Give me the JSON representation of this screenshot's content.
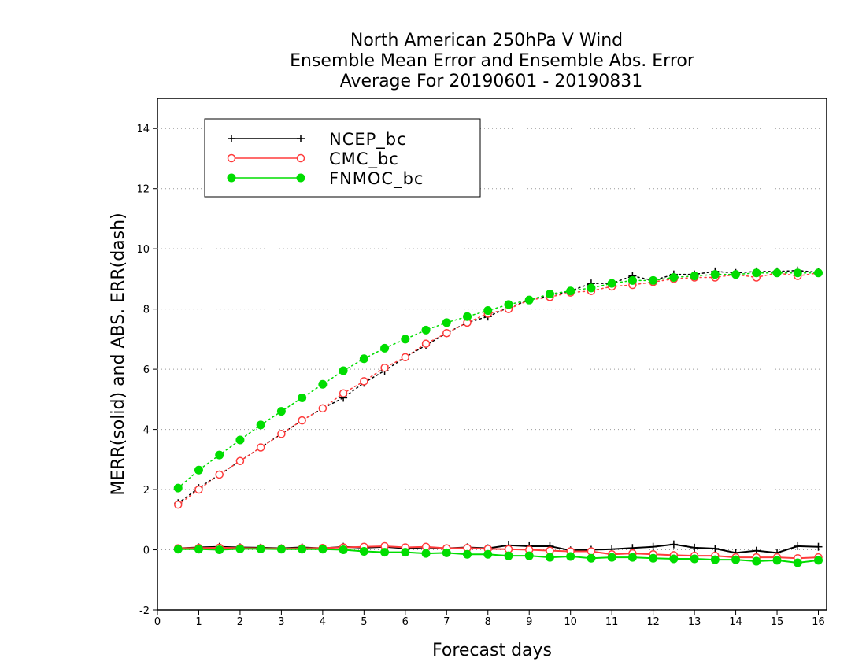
{
  "chart_data": {
    "type": "line",
    "title": [
      "North American 250hPa V Wind",
      "Ensemble Mean Error and Ensemble Abs. Error",
      "Average For 20190601 - 20190831"
    ],
    "xlabel": "Forecast days",
    "ylabel": "MERR(solid) and ABS. ERR(dash)",
    "xlim": [
      0,
      16.2
    ],
    "ylim": [
      -2,
      15
    ],
    "xticks": [
      0,
      1,
      2,
      3,
      4,
      5,
      6,
      7,
      8,
      9,
      10,
      11,
      12,
      13,
      14,
      15,
      16
    ],
    "yticks": [
      -2,
      0,
      2,
      4,
      6,
      8,
      10,
      12,
      14
    ],
    "grid": true,
    "legend_position": "top-left",
    "x": [
      0.5,
      1,
      1.5,
      2,
      2.5,
      3,
      3.5,
      4,
      4.5,
      5,
      5.5,
      6,
      6.5,
      7,
      7.5,
      8,
      8.5,
      9,
      9.5,
      10,
      10.5,
      11,
      11.5,
      12,
      12.5,
      13,
      13.5,
      14,
      14.5,
      15,
      15.5,
      16
    ],
    "series": [
      {
        "name": "NCEP_bc",
        "color": "#000000",
        "marker": "plus",
        "merr": [
          0.05,
          0.08,
          0.1,
          0.08,
          0.07,
          0.05,
          0.08,
          0.05,
          0.1,
          0.07,
          0.1,
          0.05,
          0.08,
          0.05,
          0.08,
          0.05,
          0.15,
          0.12,
          0.12,
          -0.02,
          0.0,
          0.02,
          0.06,
          0.1,
          0.18,
          0.07,
          0.04,
          -0.1,
          -0.03,
          -0.1,
          0.12,
          0.1
        ],
        "abs_err": [
          1.55,
          2.05,
          2.5,
          2.95,
          3.4,
          3.85,
          4.3,
          4.7,
          5.05,
          5.55,
          5.95,
          6.4,
          6.8,
          7.2,
          7.55,
          7.75,
          8.05,
          8.3,
          8.45,
          8.6,
          8.85,
          8.85,
          9.1,
          8.95,
          9.15,
          9.15,
          9.25,
          9.2,
          9.25,
          9.25,
          9.28,
          9.22
        ]
      },
      {
        "name": "CMC_bc",
        "color": "#ff3b3b",
        "marker": "open-circle",
        "merr": [
          0.05,
          0.06,
          0.07,
          0.06,
          0.05,
          0.04,
          0.05,
          0.06,
          0.08,
          0.1,
          0.12,
          0.08,
          0.1,
          0.05,
          0.06,
          0.03,
          0.02,
          0.0,
          -0.03,
          -0.05,
          -0.05,
          -0.15,
          -0.12,
          -0.15,
          -0.18,
          -0.2,
          -0.2,
          -0.25,
          -0.25,
          -0.25,
          -0.28,
          -0.25
        ],
        "abs_err": [
          1.5,
          2.0,
          2.5,
          2.95,
          3.4,
          3.85,
          4.3,
          4.7,
          5.2,
          5.6,
          6.05,
          6.4,
          6.85,
          7.2,
          7.55,
          7.85,
          8.0,
          8.3,
          8.4,
          8.55,
          8.6,
          8.75,
          8.8,
          8.9,
          9.0,
          9.05,
          9.05,
          9.15,
          9.05,
          9.2,
          9.1,
          9.2
        ]
      },
      {
        "name": "FNMOC_bc",
        "color": "#00dd00",
        "marker": "filled-circle",
        "merr": [
          0.02,
          0.02,
          0.0,
          0.03,
          0.03,
          0.02,
          0.02,
          0.02,
          0.0,
          -0.05,
          -0.08,
          -0.08,
          -0.12,
          -0.1,
          -0.15,
          -0.15,
          -0.2,
          -0.2,
          -0.25,
          -0.22,
          -0.28,
          -0.25,
          -0.25,
          -0.28,
          -0.3,
          -0.3,
          -0.33,
          -0.33,
          -0.38,
          -0.35,
          -0.43,
          -0.35
        ],
        "abs_err": [
          2.05,
          2.65,
          3.15,
          3.65,
          4.15,
          4.6,
          5.05,
          5.5,
          5.95,
          6.35,
          6.7,
          7.0,
          7.3,
          7.55,
          7.75,
          7.95,
          8.15,
          8.3,
          8.5,
          8.6,
          8.7,
          8.85,
          8.95,
          8.95,
          9.05,
          9.1,
          9.15,
          9.15,
          9.2,
          9.2,
          9.2,
          9.2
        ]
      }
    ]
  }
}
